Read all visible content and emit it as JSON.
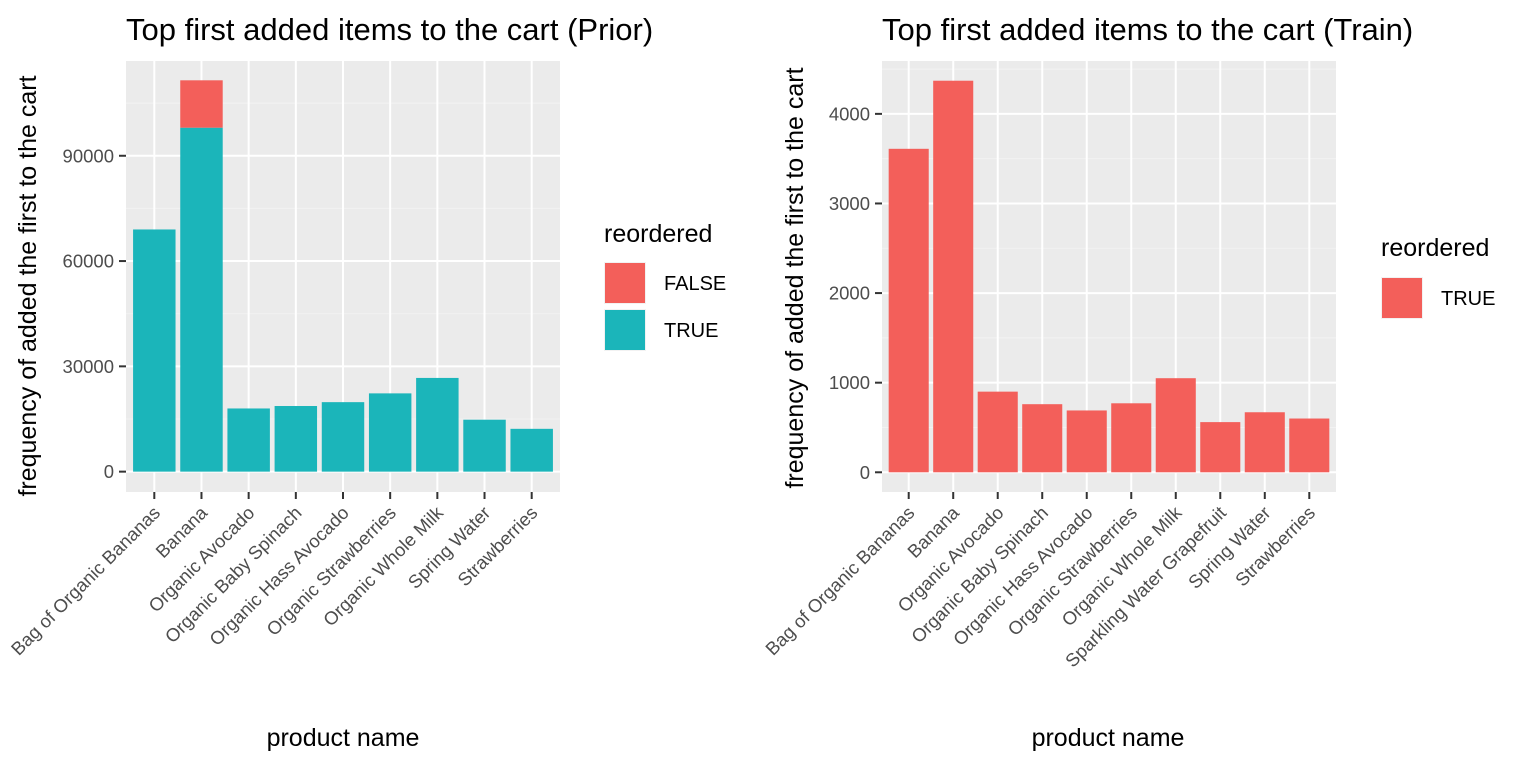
{
  "chart_data": [
    {
      "type": "bar",
      "stacked": true,
      "title": "Top first added items to the cart (Prior)",
      "xlabel": "product name",
      "ylabel": "frequency of added the first to the cart",
      "categories": [
        "Bag of Organic Bananas",
        "Banana",
        "Organic Avocado",
        "Organic Baby Spinach",
        "Organic Hass Avocado",
        "Organic Strawberries",
        "Organic Whole Milk",
        "Spring Water",
        "Strawberries"
      ],
      "series": [
        {
          "name": "TRUE",
          "color": "#1bb5ba",
          "values": [
            69000,
            98000,
            18000,
            18700,
            19800,
            22300,
            26700,
            14800,
            12200
          ]
        },
        {
          "name": "FALSE",
          "color": "#f35f5a",
          "values": [
            0,
            13500,
            0,
            0,
            0,
            0,
            0,
            0,
            0
          ]
        }
      ],
      "yticks": [
        "0",
        "30000",
        "60000",
        "90000"
      ],
      "ytick_values": [
        0,
        30000,
        60000,
        90000
      ],
      "ylim": [
        -5800,
        117000
      ],
      "legend": {
        "title": "reordered",
        "position": "right",
        "entries": [
          {
            "label": "FALSE",
            "color": "#f35f5a"
          },
          {
            "label": "TRUE",
            "color": "#1bb5ba"
          }
        ]
      },
      "grid": true
    },
    {
      "type": "bar",
      "stacked": false,
      "title": "Top first added items to the cart (Train)",
      "xlabel": "product name",
      "ylabel": "frequency of added the first to the cart",
      "categories": [
        "Bag of Organic Bananas",
        "Banana",
        "Organic Avocado",
        "Organic Baby Spinach",
        "Organic Hass Avocado",
        "Organic Strawberries",
        "Organic Whole Milk",
        "Sparkling Water Grapefruit",
        "Spring Water",
        "Strawberries"
      ],
      "series": [
        {
          "name": "TRUE",
          "color": "#f35f5a",
          "values": [
            3610,
            4370,
            900,
            760,
            690,
            770,
            1050,
            560,
            670,
            600
          ]
        }
      ],
      "yticks": [
        "0",
        "1000",
        "2000",
        "3000",
        "4000"
      ],
      "ytick_values": [
        0,
        1000,
        2000,
        3000,
        4000
      ],
      "ylim": [
        -220,
        4590
      ],
      "legend": {
        "title": "reordered",
        "position": "right",
        "entries": [
          {
            "label": "TRUE",
            "color": "#f35f5a"
          }
        ]
      },
      "grid": true
    }
  ]
}
